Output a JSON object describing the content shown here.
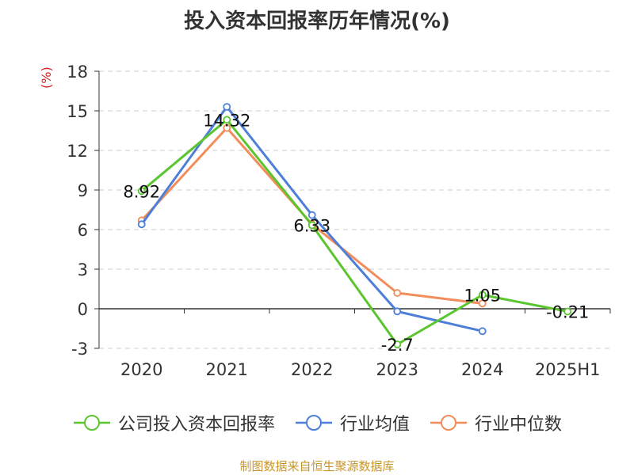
{
  "title": "投入资本回报率历年情况(%)",
  "unit_label": "(%)",
  "source": "制图数据来自恒生聚源数据库",
  "chart_data": {
    "type": "line",
    "title": "投入资本回报率历年情况(%)",
    "xlabel": "",
    "ylabel": "(%)",
    "categories": [
      "2020",
      "2021",
      "2022",
      "2023",
      "2024",
      "2025H1"
    ],
    "ylim": [
      -3,
      18
    ],
    "yticks": [
      -3,
      0,
      3,
      6,
      9,
      12,
      15,
      18
    ],
    "grid": true,
    "legend_position": "bottom",
    "series": [
      {
        "name": "公司投入资本回报率",
        "color": "#5bc530",
        "values": [
          8.92,
          14.32,
          6.33,
          -2.7,
          1.05,
          -0.21
        ],
        "labels": [
          "8.92",
          "14.32",
          "6.33",
          "-2.7",
          "1.05",
          "-0.21"
        ]
      },
      {
        "name": "行业均值",
        "color": "#4e7fd8",
        "values": [
          6.4,
          15.3,
          7.1,
          -0.2,
          -1.7,
          null
        ]
      },
      {
        "name": "行业中位数",
        "color": "#f28c5a",
        "values": [
          6.7,
          13.7,
          6.4,
          1.2,
          0.4,
          null
        ]
      }
    ]
  }
}
